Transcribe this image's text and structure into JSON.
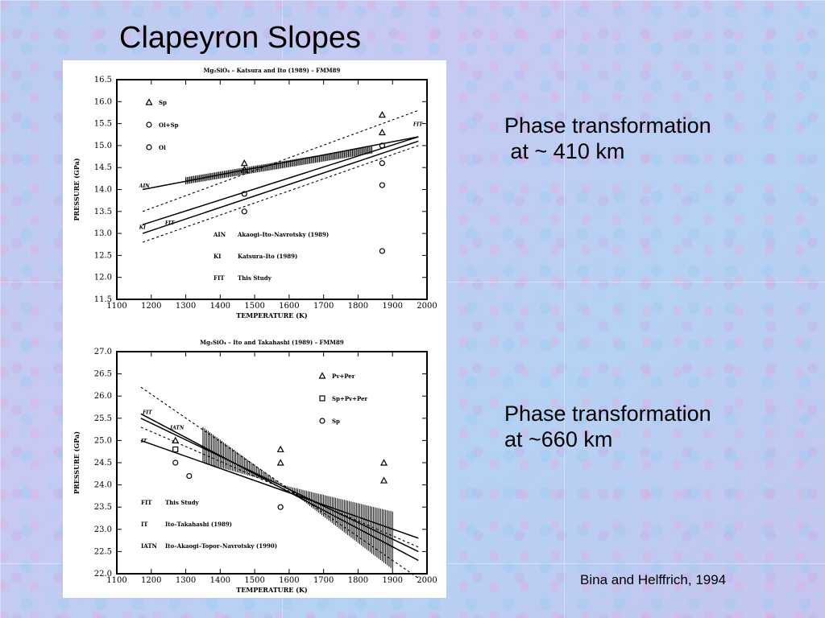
{
  "slide": {
    "title": "Clapeyron Slopes",
    "label_410": "Phase transformation\n at ~ 410 km",
    "label_660": "Phase transformation\nat ~660 km",
    "citation": "Bina and Helffrich, 1994"
  },
  "chart_data": [
    {
      "type": "line",
      "title": "Mg₂SiO₄ – Katsura and Ito (1989) – FMM89",
      "xlabel": "TEMPERATURE (K)",
      "ylabel": "PRESSURE (GPa)",
      "xlim": [
        1100,
        2000
      ],
      "ylim": [
        11.5,
        16.5
      ],
      "xticks": [
        "1100",
        "1200",
        "1300",
        "1400",
        "1500",
        "1600",
        "1700",
        "1800",
        "1900",
        "2000"
      ],
      "yticks": [
        "11.5",
        "12.0",
        "12.5",
        "13.0",
        "13.5",
        "14.0",
        "14.5",
        "15.0",
        "15.5",
        "16.0",
        "16.5"
      ],
      "markers": [
        {
          "label": "Sp",
          "symbol": "triangle"
        },
        {
          "label": "Ol+Sp",
          "symbol": "circle"
        },
        {
          "label": "Ol",
          "symbol": "circle"
        }
      ],
      "legend": [
        {
          "code": "AIN",
          "text": "Akaogi–Ito–Navrotsky (1989)"
        },
        {
          "code": "KI",
          "text": "Katsura–Ito (1989)"
        },
        {
          "code": "FIT",
          "text": "This Study"
        }
      ],
      "line_labels": [
        "AIN",
        "KI",
        "FIT",
        "FIT"
      ],
      "series": [
        {
          "name": "AIN",
          "x": [
            1175,
            1975
          ],
          "y": [
            14.0,
            15.2
          ]
        },
        {
          "name": "KI",
          "x": [
            1175,
            1975
          ],
          "y": [
            13.2,
            15.2
          ]
        },
        {
          "name": "FIT",
          "x": [
            1175,
            1975
          ],
          "y": [
            13.0,
            15.1
          ]
        },
        {
          "name": "FIT-upper",
          "x": [
            1175,
            1975
          ],
          "y": [
            13.5,
            15.8
          ]
        },
        {
          "name": "FIT-lower",
          "x": [
            1175,
            1975
          ],
          "y": [
            12.8,
            15.0
          ]
        }
      ],
      "hatch": {
        "x": [
          1300,
          1840
        ],
        "y_center": [
          14.2,
          14.9
        ],
        "half_width": 0.08
      },
      "points": [
        {
          "x": 1470,
          "y": 14.6,
          "symbol": "triangle"
        },
        {
          "x": 1470,
          "y": 14.45,
          "symbol": "triangle"
        },
        {
          "x": 1470,
          "y": 13.9,
          "symbol": "circle"
        },
        {
          "x": 1470,
          "y": 13.5,
          "symbol": "circle"
        },
        {
          "x": 1870,
          "y": 15.7,
          "symbol": "triangle"
        },
        {
          "x": 1870,
          "y": 15.3,
          "symbol": "triangle"
        },
        {
          "x": 1870,
          "y": 15.0,
          "symbol": "circle"
        },
        {
          "x": 1870,
          "y": 14.6,
          "symbol": "circle"
        },
        {
          "x": 1870,
          "y": 14.1,
          "symbol": "circle"
        },
        {
          "x": 1870,
          "y": 12.6,
          "symbol": "circle"
        }
      ]
    },
    {
      "type": "line",
      "title": "Mg₂SiO₄ – Ito and Takahashi (1989) – FMM89",
      "xlabel": "TEMPERATURE (K)",
      "ylabel": "PRESSURE (GPa)",
      "xlim": [
        1100,
        2000
      ],
      "ylim": [
        22.0,
        27.0
      ],
      "xticks": [
        "1100",
        "1200",
        "1300",
        "1400",
        "1500",
        "1600",
        "1700",
        "1800",
        "1900",
        "2000"
      ],
      "yticks": [
        "22.0",
        "22.5",
        "23.0",
        "23.5",
        "24.0",
        "24.5",
        "25.0",
        "25.5",
        "26.0",
        "26.5",
        "27.0"
      ],
      "markers": [
        {
          "label": "Pv+Per",
          "symbol": "triangle"
        },
        {
          "label": "Sp+Pv+Per",
          "symbol": "square"
        },
        {
          "label": "Sp",
          "symbol": "circle"
        }
      ],
      "legend": [
        {
          "code": "FIT",
          "text": "This Study"
        },
        {
          "code": "IT",
          "text": "Ito–Takahashi (1989)"
        },
        {
          "code": "IATN",
          "text": "Ito–Akaogi–Topor–Navrotsky (1990)"
        }
      ],
      "line_labels": [
        "FIT",
        "IATN",
        "IT"
      ],
      "series": [
        {
          "name": "FIT",
          "x": [
            1170,
            1975
          ],
          "y": [
            25.6,
            22.3
          ]
        },
        {
          "name": "IT",
          "x": [
            1170,
            1975
          ],
          "y": [
            25.0,
            22.8
          ]
        },
        {
          "name": "IATN",
          "x": [
            1170,
            1975
          ],
          "y": [
            25.5,
            22.5
          ]
        },
        {
          "name": "FIT-upper",
          "x": [
            1170,
            1975
          ],
          "y": [
            26.2,
            21.9
          ]
        },
        {
          "name": "FIT-lower",
          "x": [
            1170,
            1975
          ],
          "y": [
            25.3,
            22.6
          ]
        }
      ],
      "hatch": {
        "x": [
          1350,
          1900
        ],
        "pivot": [
          1580,
          24.0
        ],
        "top": [
          25.3,
          23.4
        ],
        "bottom": [
          24.5,
          22.1
        ]
      },
      "points": [
        {
          "x": 1270,
          "y": 25.0,
          "symbol": "triangle"
        },
        {
          "x": 1270,
          "y": 24.8,
          "symbol": "square"
        },
        {
          "x": 1270,
          "y": 24.5,
          "symbol": "circle"
        },
        {
          "x": 1310,
          "y": 24.2,
          "symbol": "circle"
        },
        {
          "x": 1575,
          "y": 24.8,
          "symbol": "triangle"
        },
        {
          "x": 1575,
          "y": 24.5,
          "symbol": "triangle"
        },
        {
          "x": 1575,
          "y": 23.5,
          "symbol": "circle"
        },
        {
          "x": 1875,
          "y": 24.5,
          "symbol": "triangle"
        },
        {
          "x": 1875,
          "y": 24.1,
          "symbol": "triangle"
        }
      ]
    }
  ]
}
